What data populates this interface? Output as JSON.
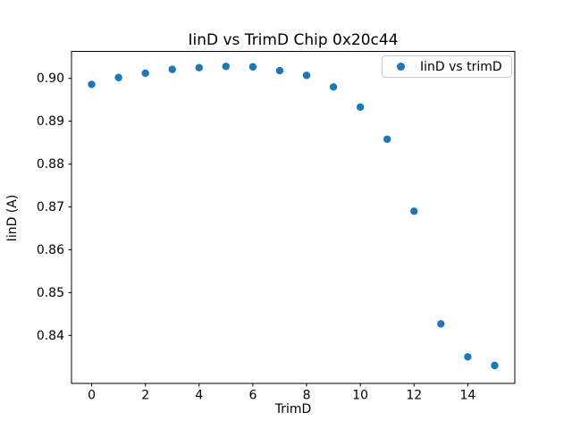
{
  "chart_data": {
    "type": "scatter",
    "title": "IinD vs TrimD Chip 0x20c44",
    "xlabel": "TrimD",
    "ylabel": "IinD (A)",
    "legend": {
      "label": "IinD vs trimD",
      "position": "upper right"
    },
    "x": [
      0,
      1,
      2,
      3,
      4,
      5,
      6,
      7,
      8,
      9,
      10,
      11,
      12,
      13,
      14,
      15
    ],
    "y": [
      0.8986,
      0.9002,
      0.9012,
      0.9021,
      0.9025,
      0.9028,
      0.9027,
      0.9018,
      0.9007,
      0.898,
      0.8933,
      0.8858,
      0.869,
      0.8427,
      0.835,
      0.833
    ],
    "xticks": [
      0,
      2,
      4,
      6,
      8,
      10,
      12,
      14
    ],
    "yticks": [
      0.84,
      0.85,
      0.86,
      0.87,
      0.88,
      0.89,
      0.9
    ],
    "xlim": [
      -0.75,
      15.75
    ],
    "ylim": [
      0.8288,
      0.9063
    ],
    "grid": false,
    "marker_color": "#1f77b4",
    "marker_radius_px": 4.2,
    "spine_color": "#000000"
  }
}
